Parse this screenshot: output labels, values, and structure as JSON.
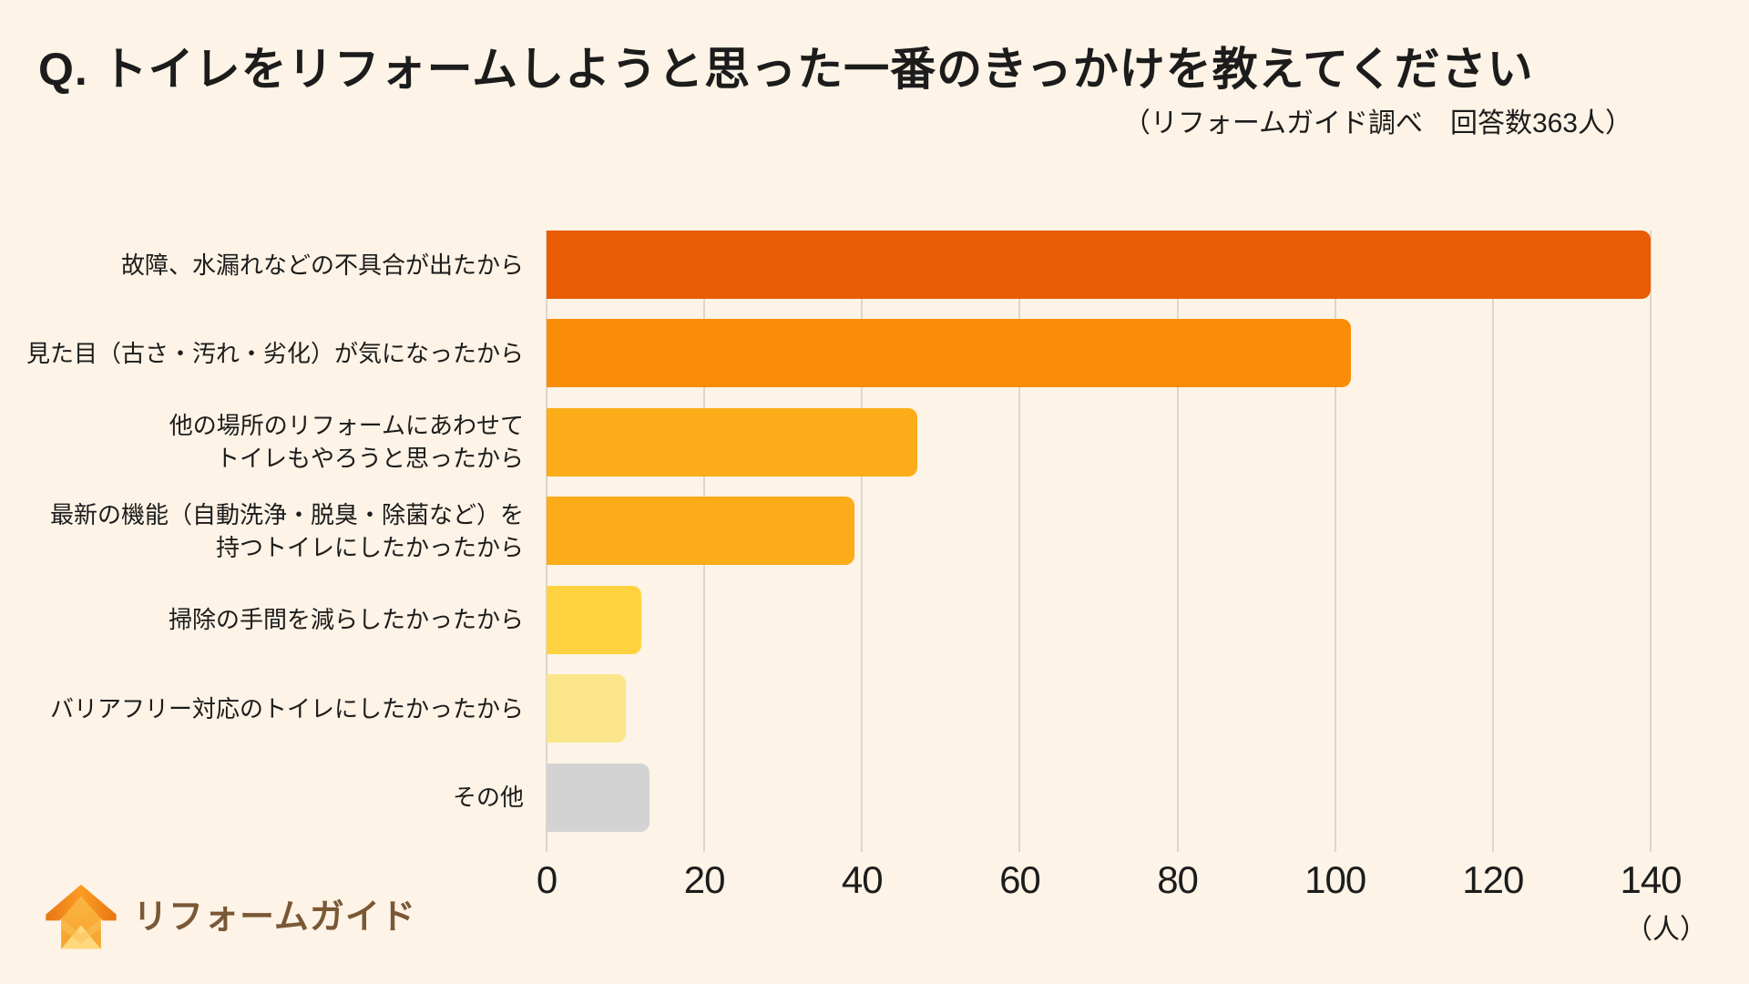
{
  "header": {
    "title": "Q. トイレをリフォームしようと思った一番のきっかけを教えてください",
    "subtitle": "（リフォームガイド調べ　回答数363人）"
  },
  "chart_data": {
    "type": "bar",
    "orientation": "horizontal",
    "title": "Q. トイレをリフォームしようと思った一番のきっかけを教えてください",
    "source_note": "（リフォームガイド調べ　回答数363人）",
    "respondents": 363,
    "categories": [
      "故障、水漏れなどの不具合が出たから",
      "見た目（古さ・汚れ・劣化）が気になったから",
      "他の場所のリフォームにあわせて\nトイレもやろうと思ったから",
      "最新の機能（自動洗浄・脱臭・除菌など）を\n持つトイレにしたかったから",
      "掃除の手間を減らしたかったから",
      "バリアフリー対応のトイレにしたかったから",
      "その他"
    ],
    "values": [
      140,
      102,
      47,
      39,
      12,
      10,
      13
    ],
    "colors": [
      "#E85C04",
      "#F98D07",
      "#FBAC18",
      "#FBAC18",
      "#FDD23E",
      "#FBE58A",
      "#D3D3D3"
    ],
    "xticks": [
      0,
      20,
      40,
      60,
      80,
      100,
      120,
      140
    ],
    "xlim": [
      0,
      140
    ],
    "xlabel": "",
    "ylabel": "",
    "unit": "（人）",
    "grid": "vertical",
    "legend": "none",
    "background_color": "#FDF3E6",
    "gridline_color": "#DCD6CD"
  },
  "logo": {
    "text": "リフォームガイド",
    "icon": "house-logo-icon",
    "roof_color": "#F68B1F",
    "body_color": "#F9B83D",
    "text_color": "#7A5836"
  }
}
